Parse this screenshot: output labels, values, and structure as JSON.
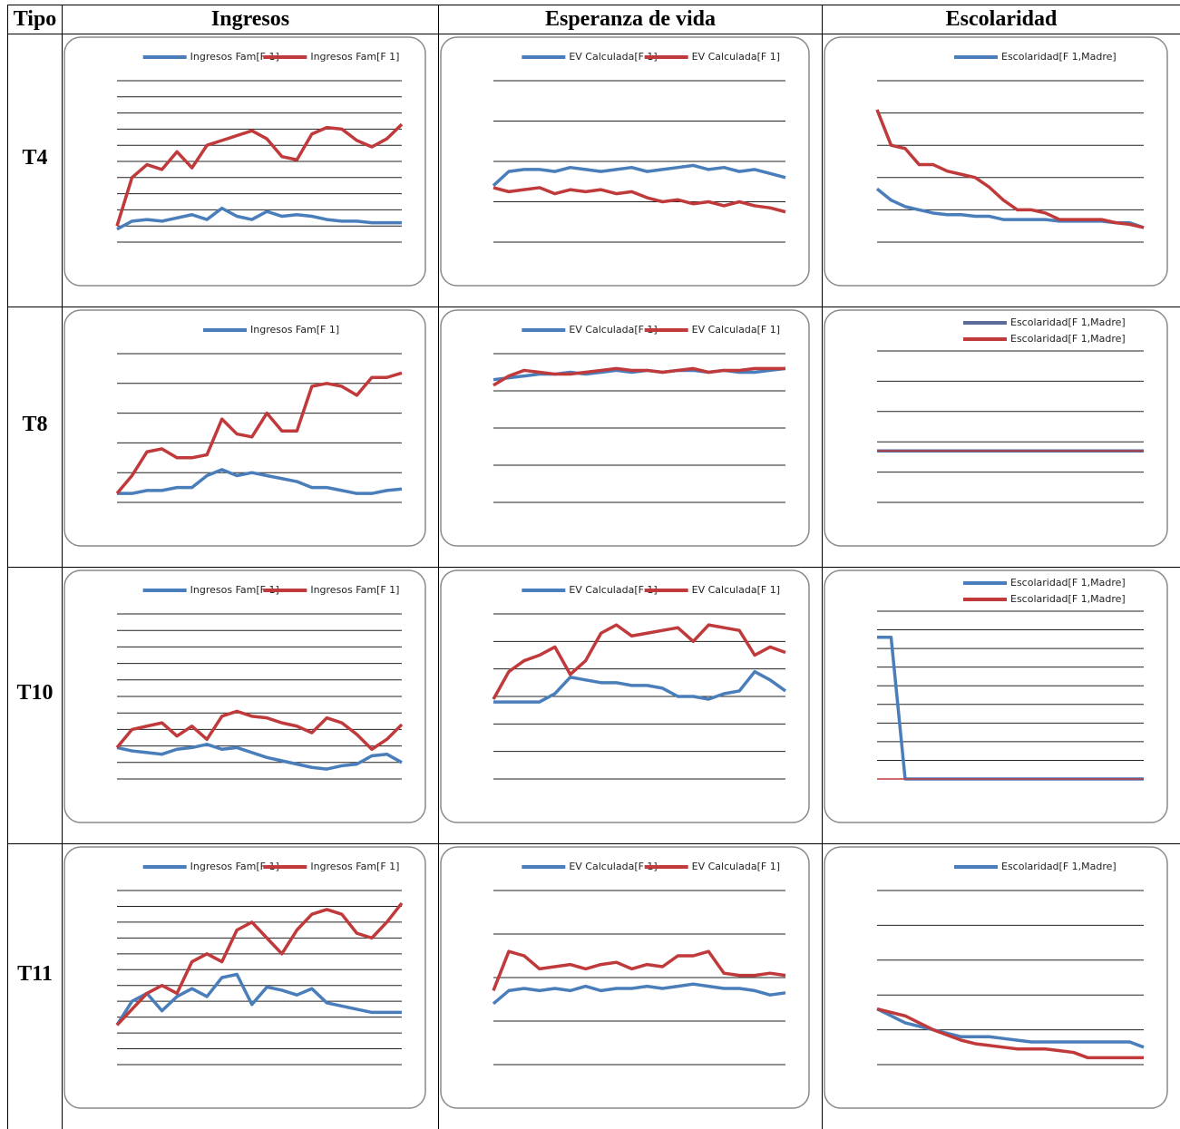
{
  "table": {
    "headers": [
      "Tipo",
      "Ingresos",
      "Esperanza de vida",
      "Escolaridad"
    ],
    "rows": [
      {
        "label": "T4",
        "charts": [
          {
            "type": "line",
            "ylim": [
              0,
              10
            ],
            "yticks": [
              0,
              1,
              2,
              3,
              4,
              5,
              6,
              7,
              8,
              9,
              10
            ],
            "series": [
              {
                "name": "Ingresos Fam[F 1]",
                "color": "#4a7ebb",
                "values": [
                  0.8,
                  1.3,
                  1.4,
                  1.3,
                  1.5,
                  1.7,
                  1.4,
                  2.1,
                  1.6,
                  1.4,
                  1.9,
                  1.6,
                  1.7,
                  1.6,
                  1.4,
                  1.3,
                  1.3,
                  1.2,
                  1.2,
                  1.2
                ]
              },
              {
                "name": "Ingresos Fam[F 1]",
                "color": "#c0393b",
                "values": [
                  1,
                  4,
                  4.8,
                  4.5,
                  5.6,
                  4.6,
                  6,
                  6.3,
                  6.6,
                  6.9,
                  6.4,
                  5.3,
                  5.1,
                  6.7,
                  7.1,
                  7,
                  6.3,
                  5.9,
                  6.4,
                  7.3
                ]
              }
            ]
          },
          {
            "type": "line",
            "ylim": [
              0,
              4
            ],
            "yticks": [
              0,
              1,
              2,
              3,
              4
            ],
            "series": [
              {
                "name": "EV Calculada[F 1]",
                "color": "#4a7ebb",
                "values": [
                  1.4,
                  1.75,
                  1.8,
                  1.8,
                  1.75,
                  1.85,
                  1.8,
                  1.75,
                  1.8,
                  1.85,
                  1.75,
                  1.8,
                  1.85,
                  1.9,
                  1.8,
                  1.85,
                  1.75,
                  1.8,
                  1.7,
                  1.6
                ]
              },
              {
                "name": "EV Calculada[F 1]",
                "color": "#c0393b",
                "values": [
                  1.35,
                  1.25,
                  1.3,
                  1.35,
                  1.2,
                  1.3,
                  1.25,
                  1.3,
                  1.2,
                  1.25,
                  1.1,
                  1.0,
                  1.05,
                  0.95,
                  1.0,
                  0.9,
                  1.0,
                  0.9,
                  0.85,
                  0.75
                ]
              }
            ]
          },
          {
            "type": "line",
            "ylim": [
              0,
              5
            ],
            "yticks": [
              0,
              1,
              2,
              3,
              4,
              5
            ],
            "series": [
              {
                "name": "Escolaridad[F 1,Madre]",
                "color": "#4a7ebb",
                "values": [
                  1.65,
                  1.3,
                  1.1,
                  1.0,
                  0.9,
                  0.85,
                  0.85,
                  0.8,
                  0.8,
                  0.7,
                  0.7,
                  0.7,
                  0.7,
                  0.65,
                  0.65,
                  0.65,
                  0.65,
                  0.6,
                  0.6,
                  0.45
                ]
              },
              {
                "color": "#c0393b",
                "values": [
                  4.1,
                  3.0,
                  2.9,
                  2.4,
                  2.4,
                  2.2,
                  2.1,
                  2.0,
                  1.7,
                  1.3,
                  1.0,
                  1.0,
                  0.9,
                  0.7,
                  0.7,
                  0.7,
                  0.7,
                  0.6,
                  0.55,
                  0.45
                ]
              }
            ]
          }
        ]
      },
      {
        "label": "T8",
        "charts": [
          {
            "type": "line",
            "ylim": [
              0,
              5
            ],
            "yticks": [
              0,
              1,
              2,
              3,
              4,
              5
            ],
            "series": [
              {
                "name": "Ingresos Fam[F 1]",
                "color": "#4a7ebb",
                "values": [
                  0.3,
                  0.3,
                  0.4,
                  0.4,
                  0.5,
                  0.5,
                  0.9,
                  1.1,
                  0.9,
                  1,
                  0.9,
                  0.8,
                  0.7,
                  0.5,
                  0.5,
                  0.4,
                  0.3,
                  0.3,
                  0.4,
                  0.45
                ]
              },
              {
                "color": "#c0393b",
                "values": [
                  0.3,
                  0.9,
                  1.7,
                  1.8,
                  1.5,
                  1.5,
                  1.6,
                  2.8,
                  2.3,
                  2.2,
                  3,
                  2.4,
                  2.4,
                  3.9,
                  4,
                  3.9,
                  3.6,
                  4.2,
                  4.2,
                  4.35
                ]
              }
            ]
          },
          {
            "type": "line",
            "ylim": [
              0,
              4
            ],
            "yticks": [
              0,
              1,
              2,
              3,
              4
            ],
            "series": [
              {
                "name": "EV Calculada[F 1]",
                "color": "#4a7ebb",
                "values": [
                  3.3,
                  3.35,
                  3.4,
                  3.45,
                  3.45,
                  3.5,
                  3.45,
                  3.5,
                  3.55,
                  3.5,
                  3.55,
                  3.5,
                  3.55,
                  3.55,
                  3.5,
                  3.55,
                  3.5,
                  3.5,
                  3.55,
                  3.6
                ]
              },
              {
                "name": "EV Calculada[F 1]",
                "color": "#c0393b",
                "values": [
                  3.15,
                  3.4,
                  3.55,
                  3.5,
                  3.45,
                  3.45,
                  3.5,
                  3.55,
                  3.6,
                  3.55,
                  3.55,
                  3.5,
                  3.55,
                  3.6,
                  3.5,
                  3.55,
                  3.55,
                  3.6,
                  3.6,
                  3.6
                ]
              }
            ]
          },
          {
            "type": "line",
            "ylim": [
              0,
              5
            ],
            "yticks": [
              0,
              1,
              2,
              3,
              4,
              5
            ],
            "series": [
              {
                "name": "Escolaridad[F 1,Madre]",
                "color": "#5a6a99",
                "values": [
                  1.7,
                  1.7,
                  1.7,
                  1.7,
                  1.7,
                  1.7,
                  1.7,
                  1.7,
                  1.7,
                  1.7,
                  1.7,
                  1.7,
                  1.7,
                  1.7,
                  1.7,
                  1.7,
                  1.7,
                  1.7,
                  1.7,
                  1.7
                ]
              },
              {
                "name": "Escolaridad[F 1,Madre]",
                "color": "#c0393b",
                "values": [
                  1.7,
                  1.7,
                  1.7,
                  1.7,
                  1.7,
                  1.7,
                  1.7,
                  1.7,
                  1.7,
                  1.7,
                  1.7,
                  1.7,
                  1.7,
                  1.7,
                  1.7,
                  1.7,
                  1.7,
                  1.7,
                  1.7,
                  1.7
                ]
              }
            ]
          }
        ]
      },
      {
        "label": "T10",
        "charts": [
          {
            "type": "line",
            "ylim": [
              0,
              10
            ],
            "yticks": [
              0,
              1,
              2,
              3,
              4,
              5,
              6,
              7,
              8,
              9,
              10
            ],
            "series": [
              {
                "name": "Ingresos Fam[F 1]",
                "color": "#4a7ebb",
                "values": [
                  1.9,
                  1.7,
                  1.6,
                  1.5,
                  1.8,
                  1.9,
                  2.1,
                  1.8,
                  1.9,
                  1.6,
                  1.3,
                  1.1,
                  0.9,
                  0.7,
                  0.6,
                  0.8,
                  0.9,
                  1.4,
                  1.5,
                  1.0
                ]
              },
              {
                "name": "Ingresos Fam[F 1]",
                "color": "#c0393b",
                "values": [
                  1.9,
                  3,
                  3.2,
                  3.4,
                  2.6,
                  3.2,
                  2.4,
                  3.8,
                  4.1,
                  3.8,
                  3.7,
                  3.4,
                  3.2,
                  2.8,
                  3.7,
                  3.4,
                  2.7,
                  1.8,
                  2.4,
                  3.3
                ]
              }
            ]
          },
          {
            "type": "line",
            "ylim": [
              0,
              6
            ],
            "yticks": [
              0,
              1,
              2,
              3,
              4,
              5,
              6
            ],
            "series": [
              {
                "name": "EV Calculada[F 1]",
                "color": "#4a7ebb",
                "values": [
                  2.8,
                  2.8,
                  2.8,
                  2.8,
                  3.1,
                  3.7,
                  3.6,
                  3.5,
                  3.5,
                  3.4,
                  3.4,
                  3.3,
                  3.0,
                  3.0,
                  2.9,
                  3.1,
                  3.2,
                  3.9,
                  3.6,
                  3.2
                ]
              },
              {
                "name": "EV Calculada[F 1]",
                "color": "#c0393b",
                "values": [
                  2.9,
                  3.9,
                  4.3,
                  4.5,
                  4.8,
                  3.8,
                  4.3,
                  5.3,
                  5.6,
                  5.2,
                  5.3,
                  5.4,
                  5.5,
                  5.0,
                  5.6,
                  5.5,
                  5.4,
                  4.5,
                  4.8,
                  4.6
                ]
              }
            ]
          },
          {
            "type": "line",
            "ylim": [
              0,
              9
            ],
            "yticks": [
              0,
              1,
              2,
              3,
              4,
              5,
              6,
              7,
              8,
              9
            ],
            "series": [
              {
                "name": "Escolaridad[F 1,Madre]",
                "color": "#4a7ebb",
                "values": [
                  7.6,
                  7.6,
                  0,
                  0,
                  0,
                  0,
                  0,
                  0,
                  0,
                  0,
                  0,
                  0,
                  0,
                  0,
                  0,
                  0,
                  0,
                  0,
                  0,
                  0
                ]
              },
              {
                "name": "Escolaridad[F 1,Madre]",
                "color": "#c0393b",
                "values": [
                  0,
                  0,
                  0,
                  0,
                  0,
                  0,
                  0,
                  0,
                  0,
                  0,
                  0,
                  0,
                  0,
                  0,
                  0,
                  0,
                  0,
                  0,
                  0,
                  0
                ]
              }
            ]
          }
        ]
      },
      {
        "label": "T11",
        "charts": [
          {
            "type": "line",
            "ylim": [
              0,
              11
            ],
            "yticks": [
              0,
              1,
              2,
              3,
              4,
              5,
              6,
              7,
              8,
              9,
              10,
              11
            ],
            "series": [
              {
                "name": "Ingresos Fam[F 1]",
                "color": "#4a7ebb",
                "values": [
                  2.5,
                  4,
                  4.5,
                  3.4,
                  4.3,
                  4.8,
                  4.3,
                  5.5,
                  5.7,
                  3.8,
                  4.9,
                  4.7,
                  4.4,
                  4.8,
                  3.9,
                  3.7,
                  3.5,
                  3.3,
                  3.3,
                  3.3
                ]
              },
              {
                "name": "Ingresos Fam[F 1]",
                "color": "#c0393b",
                "values": [
                  2.5,
                  3.5,
                  4.5,
                  5,
                  4.5,
                  6.5,
                  7,
                  6.5,
                  8.5,
                  9,
                  8,
                  7,
                  8.5,
                  9.5,
                  9.8,
                  9.5,
                  8.3,
                  8,
                  9,
                  10.2
                ]
              }
            ]
          },
          {
            "type": "line",
            "ylim": [
              0,
              4
            ],
            "yticks": [
              0,
              1,
              2,
              3,
              4
            ],
            "series": [
              {
                "name": "EV Calculada[F 1]",
                "color": "#4a7ebb",
                "values": [
                  1.4,
                  1.7,
                  1.75,
                  1.7,
                  1.75,
                  1.7,
                  1.8,
                  1.7,
                  1.75,
                  1.75,
                  1.8,
                  1.75,
                  1.8,
                  1.85,
                  1.8,
                  1.75,
                  1.75,
                  1.7,
                  1.6,
                  1.65
                ]
              },
              {
                "name": "EV Calculada[F 1]",
                "color": "#c0393b",
                "values": [
                  1.7,
                  2.6,
                  2.5,
                  2.2,
                  2.25,
                  2.3,
                  2.2,
                  2.3,
                  2.35,
                  2.2,
                  2.3,
                  2.25,
                  2.5,
                  2.5,
                  2.6,
                  2.1,
                  2.05,
                  2.05,
                  2.1,
                  2.05
                ]
              }
            ]
          },
          {
            "type": "line",
            "ylim": [
              0,
              5
            ],
            "yticks": [
              0,
              1,
              2,
              3,
              4,
              5
            ],
            "series": [
              {
                "name": "Escolaridad[F 1,Madre]",
                "color": "#4a7ebb",
                "values": [
                  1.6,
                  1.4,
                  1.2,
                  1.1,
                  1.0,
                  0.9,
                  0.8,
                  0.8,
                  0.8,
                  0.75,
                  0.7,
                  0.65,
                  0.65,
                  0.65,
                  0.65,
                  0.65,
                  0.65,
                  0.65,
                  0.65,
                  0.5
                ]
              },
              {
                "color": "#c0393b",
                "values": [
                  1.6,
                  1.5,
                  1.4,
                  1.2,
                  1.0,
                  0.85,
                  0.7,
                  0.6,
                  0.55,
                  0.5,
                  0.45,
                  0.45,
                  0.45,
                  0.4,
                  0.35,
                  0.2,
                  0.2,
                  0.2,
                  0.2,
                  0.2
                ]
              }
            ]
          }
        ]
      }
    ]
  }
}
